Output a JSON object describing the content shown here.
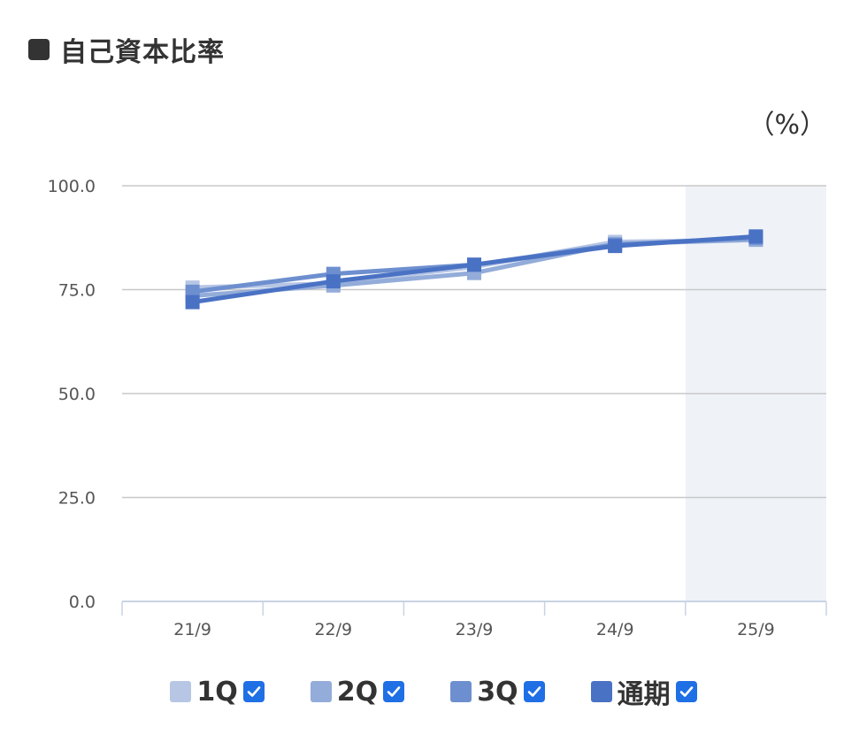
{
  "header": {
    "title": "自己資本比率",
    "unit": "（%）"
  },
  "colors": {
    "q1": "#b6c6e4",
    "q2": "#93acd9",
    "q3": "#6e8fcf",
    "annual": "#4a72c4",
    "highlight": "#eff3f8",
    "check": "#1f6fe5"
  },
  "legend": [
    {
      "key": "q1",
      "label": "1Q",
      "checked": true
    },
    {
      "key": "q2",
      "label": "2Q",
      "checked": true
    },
    {
      "key": "q3",
      "label": "3Q",
      "checked": true
    },
    {
      "key": "annual",
      "label": "通期",
      "checked": true
    }
  ],
  "chart_data": {
    "type": "line",
    "categories": [
      "21/9",
      "22/9",
      "23/9",
      "24/9",
      "25/9"
    ],
    "ylim": [
      0,
      100
    ],
    "yticks": [
      "0.0",
      "25.0",
      "50.0",
      "75.0",
      "100.0"
    ],
    "highlight_category": "25/9",
    "series": [
      {
        "name": "1Q",
        "color_key": "q1",
        "values": [
          75.5,
          76.5,
          80.5,
          86.5,
          87.0
        ]
      },
      {
        "name": "2Q",
        "color_key": "q2",
        "values": [
          73.5,
          76.0,
          79.0,
          86.0,
          87.0
        ]
      },
      {
        "name": "3Q",
        "color_key": "q3",
        "values": [
          74.5,
          78.8,
          81.0,
          85.8,
          87.5
        ]
      },
      {
        "name": "通期",
        "color_key": "annual",
        "values": [
          72.0,
          77.0,
          81.0,
          85.5,
          87.8
        ]
      }
    ]
  }
}
